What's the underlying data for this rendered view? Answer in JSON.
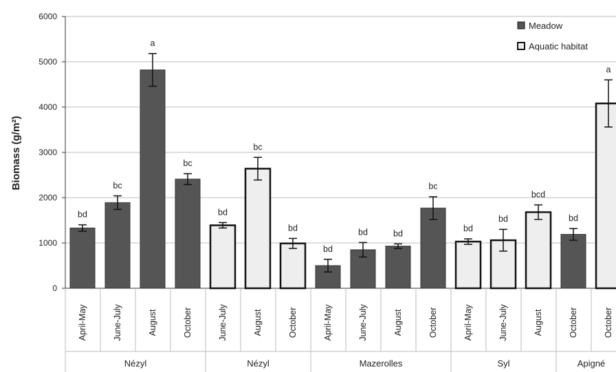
{
  "chart_data": {
    "type": "bar",
    "title": "",
    "xlabel": "",
    "ylabel": "Biomass (g/m²)",
    "ylim": [
      0,
      6000
    ],
    "yticks": [
      0,
      1000,
      2000,
      3000,
      4000,
      5000,
      6000
    ],
    "grid": true,
    "legend_position": "top-right",
    "series": [
      {
        "name": "Meadow",
        "color": "#555555"
      },
      {
        "name": "Aquatic habitat",
        "color": "#eeeeee"
      }
    ],
    "groups": [
      {
        "label": "Nézyl",
        "bars": [
          {
            "category": "April-May",
            "series": "Meadow",
            "value": 1330,
            "error": 70,
            "significance": "bd"
          },
          {
            "category": "June-July",
            "series": "Meadow",
            "value": 1890,
            "error": 150,
            "significance": "bc"
          },
          {
            "category": "August",
            "series": "Meadow",
            "value": 4820,
            "error": 360,
            "significance": "a"
          },
          {
            "category": "October",
            "series": "Meadow",
            "value": 2410,
            "error": 120,
            "significance": "bc"
          }
        ]
      },
      {
        "label": "Nézyl",
        "bars": [
          {
            "category": "June-July",
            "series": "Aquatic habitat",
            "value": 1390,
            "error": 60,
            "significance": "bd"
          },
          {
            "category": "August",
            "series": "Aquatic habitat",
            "value": 2640,
            "error": 250,
            "significance": "bc"
          },
          {
            "category": "October",
            "series": "Aquatic habitat",
            "value": 990,
            "error": 110,
            "significance": "bd"
          }
        ]
      },
      {
        "label": "Mazerolles",
        "bars": [
          {
            "category": "April-May",
            "series": "Meadow",
            "value": 500,
            "error": 140,
            "significance": "bd"
          },
          {
            "category": "June-July",
            "series": "Meadow",
            "value": 850,
            "error": 160,
            "significance": "bd"
          },
          {
            "category": "August",
            "series": "Meadow",
            "value": 930,
            "error": 50,
            "significance": "bd"
          },
          {
            "category": "October",
            "series": "Meadow",
            "value": 1770,
            "error": 250,
            "significance": "bc"
          }
        ]
      },
      {
        "label": "Syl",
        "bars": [
          {
            "category": "April-May",
            "series": "Aquatic habitat",
            "value": 1030,
            "error": 60,
            "significance": "bd"
          },
          {
            "category": "June-July",
            "series": "Aquatic habitat",
            "value": 1060,
            "error": 240,
            "significance": "bd"
          },
          {
            "category": "August",
            "series": "Aquatic habitat",
            "value": 1680,
            "error": 160,
            "significance": "bcd"
          }
        ]
      },
      {
        "label": "Apigné",
        "bars": [
          {
            "category": "October",
            "series": "Meadow",
            "value": 1190,
            "error": 130,
            "significance": "bd"
          },
          {
            "category": "October",
            "series": "Aquatic habitat",
            "value": 4080,
            "error": 520,
            "significance": "a"
          }
        ]
      }
    ]
  }
}
